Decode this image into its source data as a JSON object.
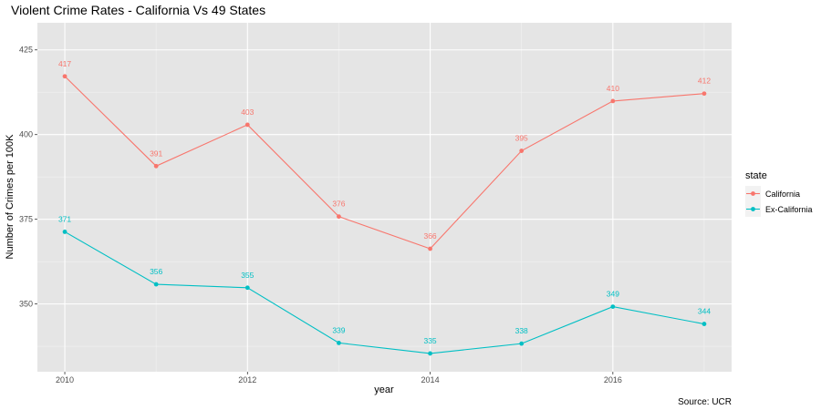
{
  "chart_data": {
    "type": "line",
    "title": "Violent Crime Rates - California Vs 49 States",
    "xlabel": "year",
    "ylabel": "Number of Crimes per 100K",
    "caption": "Source: UCR",
    "x": [
      2010,
      2011,
      2012,
      2013,
      2014,
      2015,
      2016,
      2017
    ],
    "xlim": [
      2009.7,
      2017.3
    ],
    "ylim": [
      330,
      433
    ],
    "xticks": [
      2010,
      2012,
      2014,
      2016
    ],
    "yticks": [
      350,
      375,
      400,
      425
    ],
    "grid": true,
    "legend": {
      "title": "state",
      "position": "right"
    },
    "series": [
      {
        "name": "California",
        "color": "#F8766D",
        "values": [
          417.2,
          390.7,
          402.9,
          375.8,
          366.3,
          395.2,
          409.9,
          412.1
        ],
        "labels": [
          "417",
          "391",
          "403",
          "376",
          "366",
          "395",
          "410",
          "412"
        ]
      },
      {
        "name": "Ex-California",
        "color": "#00BFC4",
        "values": [
          371.3,
          355.8,
          354.8,
          338.5,
          335.4,
          338.3,
          349.2,
          344.1
        ],
        "labels": [
          "371",
          "356",
          "355",
          "339",
          "335",
          "338",
          "349",
          "344"
        ]
      }
    ]
  }
}
